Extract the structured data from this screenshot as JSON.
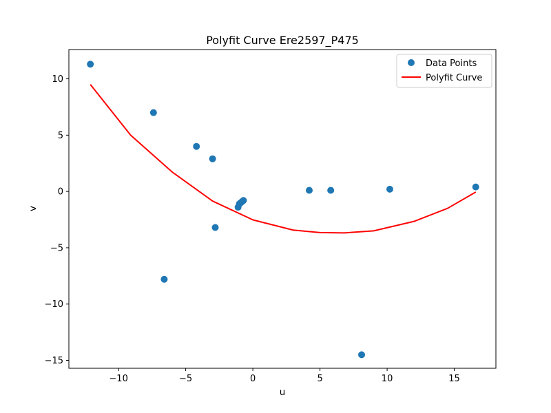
{
  "chart_data": {
    "type": "scatter",
    "title": "Polyfit Curve Ere2597_P475",
    "xlabel": "u",
    "ylabel": "v",
    "xlim": [
      -13.7,
      18.1
    ],
    "ylim": [
      -15.7,
      12.6
    ],
    "xticks": [
      -10,
      -5,
      0,
      5,
      10,
      15
    ],
    "yticks": [
      -15,
      -10,
      -5,
      0,
      5,
      10
    ],
    "grid": false,
    "legend_position": "top-right",
    "series": [
      {
        "name": "Data Points",
        "kind": "scatter",
        "color": "#1f77b4",
        "x": [
          -12.1,
          -7.4,
          -6.6,
          -4.2,
          -3.0,
          -2.8,
          -1.1,
          -1.0,
          -0.9,
          -0.8,
          -0.7,
          4.2,
          5.8,
          8.1,
          10.2,
          16.6
        ],
        "y": [
          11.3,
          7.0,
          -7.8,
          4.0,
          2.9,
          -3.2,
          -1.4,
          -1.1,
          -1.0,
          -0.9,
          -0.8,
          0.1,
          0.1,
          -14.5,
          0.2,
          0.4
        ]
      },
      {
        "name": "Polyfit Curve",
        "kind": "line",
        "color": "#ff0000",
        "x": [
          -12.1,
          -9.1,
          -6.0,
          -3.0,
          0.0,
          3.0,
          5.0,
          6.8,
          9.0,
          12.0,
          14.5,
          16.6
        ],
        "y": [
          9.5,
          5.0,
          1.72,
          -0.85,
          -2.52,
          -3.43,
          -3.65,
          -3.68,
          -3.5,
          -2.66,
          -1.5,
          -0.05
        ]
      }
    ]
  }
}
